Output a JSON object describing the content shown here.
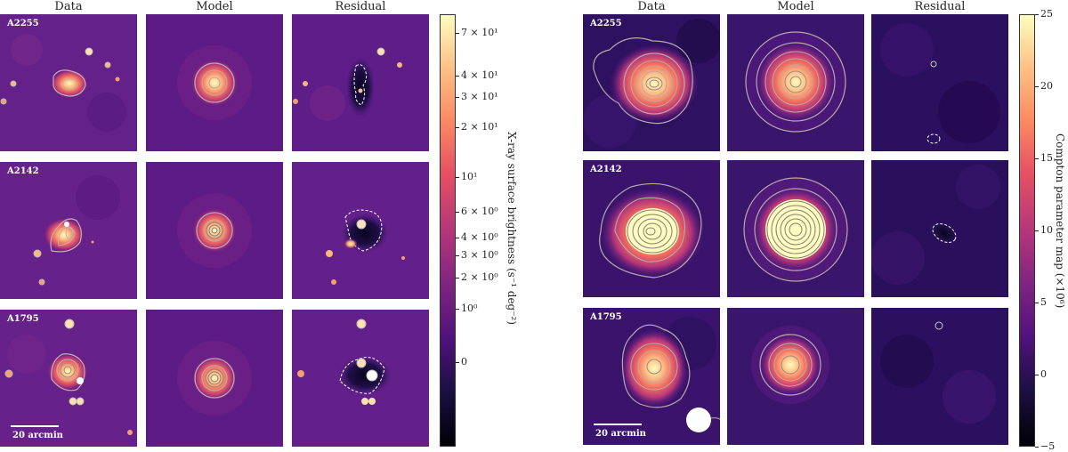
{
  "left_figure": {
    "columns": [
      "Data",
      "Model",
      "Residual"
    ],
    "rows": [
      "A2255",
      "A2142",
      "A1795"
    ],
    "scalebar_label": "20 arcmin",
    "colorbar": {
      "label": "X-ray surface brightness (s⁻¹ deg⁻²)",
      "ticks": [
        "7 × 10¹",
        "4 × 10¹",
        "3 × 10¹",
        "2 × 10¹",
        "10¹",
        "6 × 10⁰",
        "4 × 10⁰",
        "3 × 10⁰",
        "2 × 10⁰",
        "10⁰",
        "0"
      ]
    }
  },
  "right_figure": {
    "columns": [
      "Data",
      "Model",
      "Residual"
    ],
    "rows": [
      "A2255",
      "A2142",
      "A1795"
    ],
    "scalebar_label": "20 arcmin",
    "colorbar": {
      "label": "Compton parameter map (×10⁶)",
      "ticks": [
        "25",
        "20",
        "15",
        "10",
        "5",
        "0",
        "−5"
      ]
    }
  },
  "chart_data": [
    {
      "type": "heatmap",
      "title": "",
      "panel_columns": [
        "Data",
        "Model",
        "Residual"
      ],
      "panel_rows": [
        "A2255",
        "A2142",
        "A1795"
      ],
      "colormap": "magma",
      "scale": "symlog",
      "colorbar_label": "X-ray surface brightness (s⁻¹ deg⁻²)",
      "colorbar_ticks": [
        70,
        40,
        30,
        20,
        10,
        6,
        4,
        3,
        2,
        1,
        0
      ],
      "scalebar": "20 arcmin",
      "contours": "grey solid (positive), white dashed (negative residual)"
    },
    {
      "type": "heatmap",
      "title": "",
      "panel_columns": [
        "Data",
        "Model",
        "Residual"
      ],
      "panel_rows": [
        "A2255",
        "A2142",
        "A1795"
      ],
      "colormap": "magma",
      "scale": "linear",
      "colorbar_label": "Compton parameter map (×10⁶)",
      "colorbar_range": [
        -5,
        25
      ],
      "colorbar_ticks": [
        25,
        20,
        15,
        10,
        5,
        0,
        -5
      ],
      "scalebar": "20 arcmin",
      "beam": "white filled circle",
      "contours": "grey solid (positive), white dashed (negative residual)"
    }
  ]
}
